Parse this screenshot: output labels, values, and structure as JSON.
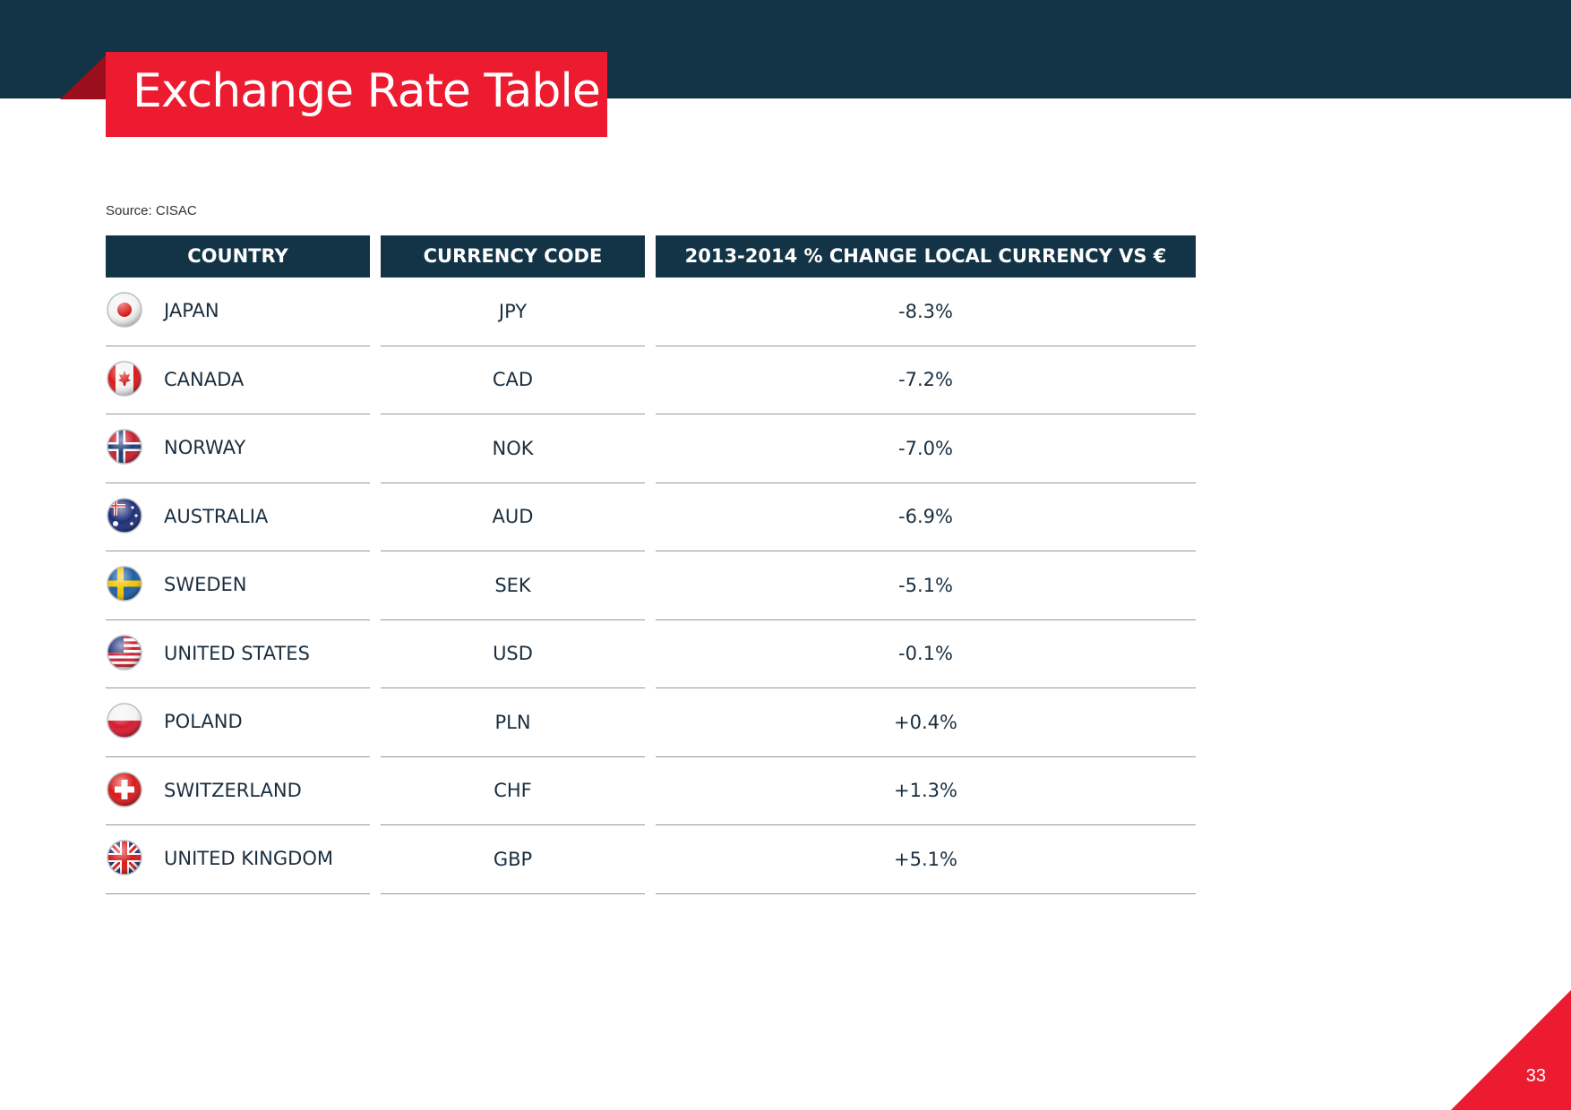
{
  "header": {
    "title": "Exchange Rate Table"
  },
  "source": "Source: CISAC",
  "table": {
    "columns": [
      "COUNTRY",
      "CURRENCY CODE",
      "2013-2014 % CHANGE LOCAL CURRENCY VS €"
    ],
    "rows": [
      {
        "country": "JAPAN",
        "code": "JPY",
        "change": "-8.3%",
        "flag": "japan-flag-icon"
      },
      {
        "country": "CANADA",
        "code": "CAD",
        "change": "-7.2%",
        "flag": "canada-flag-icon"
      },
      {
        "country": "NORWAY",
        "code": "NOK",
        "change": "-7.0%",
        "flag": "norway-flag-icon"
      },
      {
        "country": "AUSTRALIA",
        "code": "AUD",
        "change": "-6.9%",
        "flag": "australia-flag-icon"
      },
      {
        "country": "SWEDEN",
        "code": "SEK",
        "change": "-5.1%",
        "flag": "sweden-flag-icon"
      },
      {
        "country": "UNITED STATES",
        "code": "USD",
        "change": "-0.1%",
        "flag": "usa-flag-icon"
      },
      {
        "country": "POLAND",
        "code": "PLN",
        "change": "+0.4%",
        "flag": "poland-flag-icon"
      },
      {
        "country": "SWITZERLAND",
        "code": "CHF",
        "change": "+1.3%",
        "flag": "switzerland-flag-icon"
      },
      {
        "country": "UNITED KINGDOM",
        "code": "GBP",
        "change": "+5.1%",
        "flag": "uk-flag-icon"
      }
    ]
  },
  "page_number": "33",
  "colors": {
    "navy": "#133446",
    "red": "#ed1b2f"
  }
}
